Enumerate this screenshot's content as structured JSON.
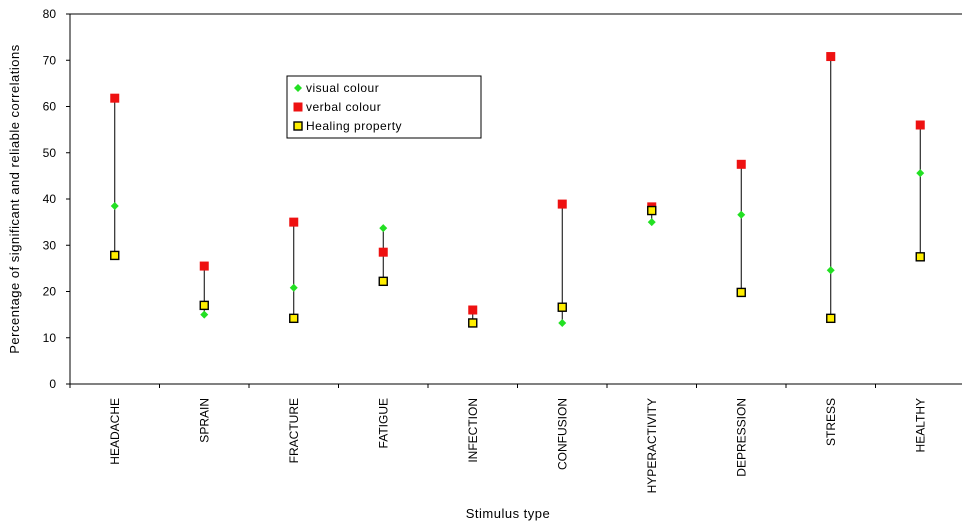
{
  "chart_data": {
    "type": "scatter",
    "categories": [
      "HEADACHE",
      "SPRAIN",
      "FRACTURE",
      "FATIGUE",
      "INFECTION",
      "CONFUSION",
      "HYPERACTIVITY",
      "DEPRESSION",
      "STRESS",
      "HEALTHY"
    ],
    "series": [
      {
        "name": "visual colour",
        "values": [
          38.5,
          15,
          20.8,
          33.7,
          null,
          13.2,
          35,
          36.6,
          24.6,
          45.6
        ],
        "color": "#22e022",
        "marker": "diamond"
      },
      {
        "name": "verbal colour",
        "values": [
          61.8,
          25.5,
          35,
          28.5,
          16,
          38.9,
          38.3,
          47.5,
          70.8,
          56
        ],
        "color": "#ee1111",
        "marker": "square"
      },
      {
        "name": "Healing property",
        "values": [
          27.8,
          17,
          14.2,
          22.2,
          13.2,
          16.6,
          37.5,
          19.8,
          14.2,
          27.5
        ],
        "color": "#ffee00",
        "marker": "square-outlined"
      }
    ],
    "xlabel": "Stimulus type",
    "ylabel": "Percentage of significant and reliable correlations",
    "ylim": [
      0,
      80
    ],
    "yticks": [
      0,
      10,
      20,
      30,
      40,
      50,
      60,
      70,
      80
    ],
    "range_lines": true,
    "grid": false,
    "legend_position": "top-center"
  }
}
